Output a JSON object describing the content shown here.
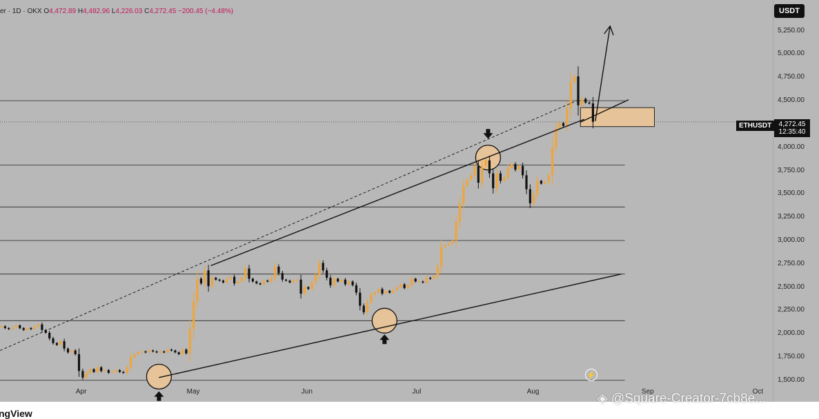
{
  "header": {
    "symbol_suffix": "er · 1D · OKX",
    "open_label": "O",
    "open": "4,472.89",
    "high_label": "H",
    "high": "4,482.96",
    "low_label": "L",
    "low": "4,226.03",
    "close_label": "C",
    "close": "4,272.45",
    "change": "−200.45 (−4.48%)"
  },
  "currency_button": "USDT",
  "ticker": {
    "symbol": "ETHUSDT",
    "price": "4,272.45",
    "countdown": "12:35:40"
  },
  "footer": {
    "brand": "ngView",
    "watermark": "@Square-Creator-7cb8e..."
  },
  "colors": {
    "background": "#b8b8b8",
    "candle": "#f0a53a",
    "line": "#111111",
    "zone": "#e6c398"
  },
  "chart_data": {
    "type": "candlestick",
    "title": "",
    "x_range": [
      "2025-03-10",
      "2025-10-05"
    ],
    "y_range": [
      1270,
      5580
    ],
    "y_ticks": [
      1500,
      1750,
      2000,
      2250,
      2500,
      2750,
      3000,
      3250,
      3500,
      3750,
      4000,
      4250,
      4500,
      4750,
      5000,
      5250
    ],
    "y_tick_labels": [
      "1,500.00",
      "1,750.00",
      "2,000.00",
      "2,250.00",
      "2,500.00",
      "2,750.00",
      "3,000.00",
      "3,250.00",
      "3,500.00",
      "3,750.00",
      "4,000.00",
      "4,250.00",
      "4,500.00",
      "4,750.00",
      "5,000.00",
      "5,250.00"
    ],
    "x_ticks": [
      {
        "date": "2025-04-01",
        "label": "Apr"
      },
      {
        "date": "2025-05-01",
        "label": "May"
      },
      {
        "date": "2025-06-01",
        "label": "Jun"
      },
      {
        "date": "2025-07-01",
        "label": "Jul"
      },
      {
        "date": "2025-08-01",
        "label": "Aug"
      },
      {
        "date": "2025-09-01",
        "label": "Sep"
      },
      {
        "date": "2025-10-01",
        "label": "Oct"
      }
    ],
    "horizontal_levels": [
      1500,
      2140,
      2640,
      3000,
      3360,
      3810,
      4500
    ],
    "last_price": 4272.45,
    "candles_start": "2025-03-10",
    "closes": [
      2080,
      2060,
      2050,
      2070,
      2090,
      2060,
      2040,
      2060,
      2050,
      2080,
      2100,
      2040,
      2010,
      1950,
      1900,
      1880,
      1920,
      1840,
      1800,
      1820,
      1780,
      1600,
      1530,
      1580,
      1620,
      1590,
      1640,
      1600,
      1610,
      1580,
      1590,
      1610,
      1590,
      1580,
      1640,
      1750,
      1780,
      1800,
      1810,
      1800,
      1820,
      1810,
      1800,
      1810,
      1800,
      1830,
      1820,
      1800,
      1780,
      1830,
      1790,
      2050,
      2350,
      2590,
      2540,
      2680,
      2510,
      2600,
      2580,
      2570,
      2550,
      2590,
      2610,
      2540,
      2560,
      2600,
      2700,
      2590,
      2560,
      2540,
      2530,
      2570,
      2560,
      2600,
      2720,
      2650,
      2580,
      2570,
      2550,
      2570,
      2580,
      2430,
      2500,
      2480,
      2550,
      2630,
      2760,
      2680,
      2600,
      2520,
      2590,
      2560,
      2580,
      2530,
      2560,
      2520,
      2440,
      2300,
      2230,
      2340,
      2420,
      2440,
      2480,
      2430,
      2460,
      2440,
      2470,
      2500,
      2530,
      2490,
      2520,
      2590,
      2560,
      2560,
      2550,
      2600,
      2590,
      2620,
      2720,
      2930,
      2950,
      2970,
      3000,
      3200,
      3400,
      3590,
      3650,
      3700,
      3800,
      3620,
      3800,
      3860,
      3720,
      3560,
      3720,
      3640,
      3680,
      3780,
      3820,
      3760,
      3800,
      3700,
      3550,
      3400,
      3500,
      3640,
      3610,
      3630,
      3700,
      4000,
      4200,
      4260,
      4230,
      4420,
      4700,
      4760,
      4450,
      4520,
      4480,
      4470,
      4272.45
    ],
    "trend_lines": [
      {
        "style": "solid",
        "from": [
          "2025-05-06",
          2730
        ],
        "to": [
          "2025-08-15",
          4300
        ]
      },
      {
        "style": "dashed",
        "from": [
          "2025-03-10",
          1820
        ],
        "to": [
          "2025-08-13",
          4500
        ]
      },
      {
        "style": "solid",
        "from": [
          "2025-04-22",
          1530
        ],
        "to": [
          "2025-08-25",
          2640
        ]
      },
      {
        "style": "solid",
        "from": [
          "2025-08-14",
          4270
        ],
        "to": [
          "2025-08-27",
          4510
        ]
      }
    ],
    "zone": {
      "from": "2025-08-14",
      "to": "2025-09-03",
      "low": 4222,
      "high": 4425
    },
    "markers": [
      {
        "type": "circle",
        "date": "2025-04-22",
        "value": 1540
      },
      {
        "type": "circle",
        "date": "2025-06-22",
        "value": 2140
      },
      {
        "type": "circle",
        "date": "2025-07-20",
        "value": 3890
      },
      {
        "type": "arrow-up",
        "date": "2025-04-22",
        "value": 1530
      },
      {
        "type": "arrow-up",
        "date": "2025-06-22",
        "value": 2140
      },
      {
        "type": "arrow-down",
        "date": "2025-07-20",
        "value": 3900
      },
      {
        "type": "projection-arrow",
        "from": [
          "2025-08-18",
          4280
        ],
        "to": [
          "2025-08-22",
          5300
        ]
      }
    ]
  }
}
